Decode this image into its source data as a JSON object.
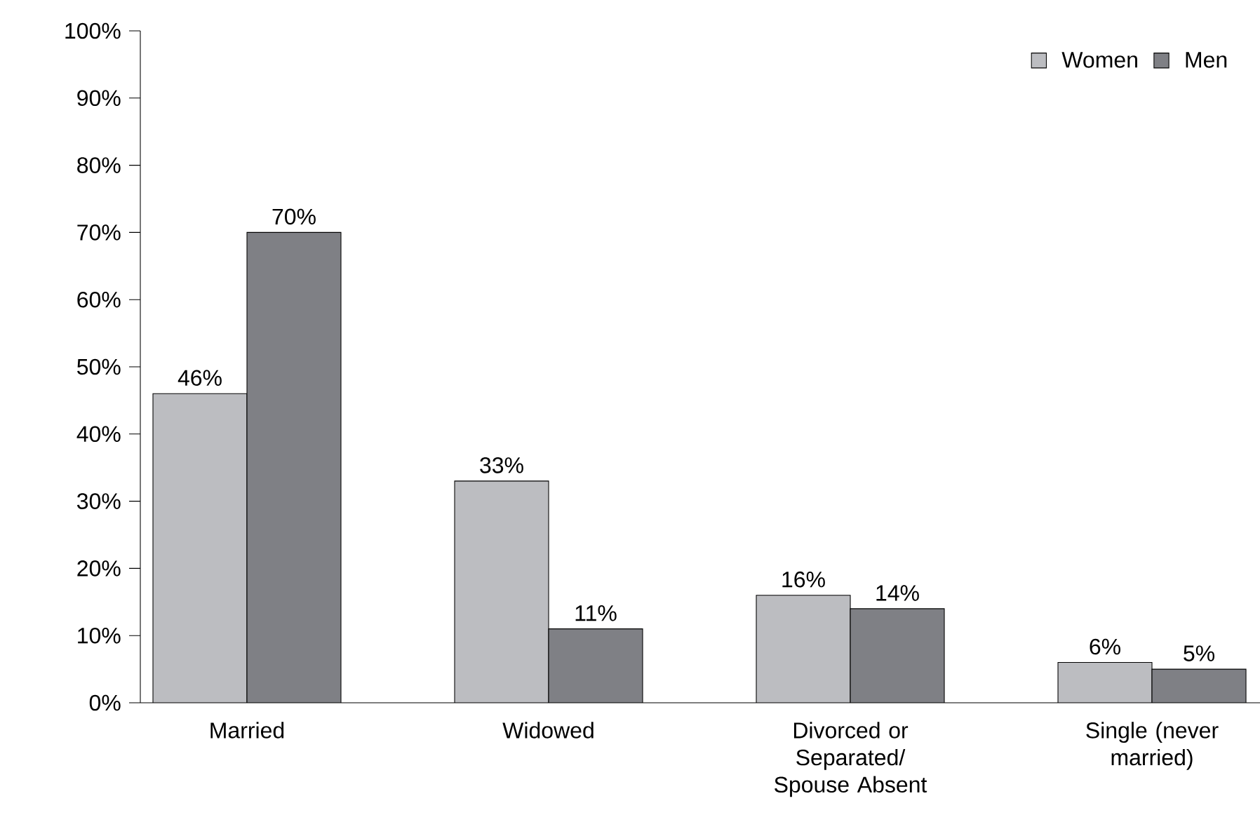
{
  "chart_data": {
    "type": "bar",
    "categories": [
      "Married",
      "Widowed",
      "Divorced or Separated/ Spouse Absent",
      "Single (never married)"
    ],
    "series": [
      {
        "name": "Women",
        "color": "#bcbdc1",
        "values": [
          46,
          33,
          16,
          6
        ],
        "value_labels": [
          "46%",
          "33%",
          "16%",
          "6%"
        ]
      },
      {
        "name": "Men",
        "color": "#7f8085",
        "values": [
          70,
          11,
          14,
          5
        ],
        "value_labels": [
          "70%",
          "11%",
          "14%",
          "5%"
        ]
      }
    ],
    "ylim": [
      0,
      100
    ],
    "yticks": [
      {
        "value": 0,
        "label": "0%"
      },
      {
        "value": 10,
        "label": "10%"
      },
      {
        "value": 20,
        "label": "20%"
      },
      {
        "value": 30,
        "label": "30%"
      },
      {
        "value": 40,
        "label": "40%"
      },
      {
        "value": 50,
        "label": "50%"
      },
      {
        "value": 60,
        "label": "60%"
      },
      {
        "value": 70,
        "label": "70%"
      },
      {
        "value": 80,
        "label": "80%"
      },
      {
        "value": 90,
        "label": "90%"
      },
      {
        "value": 100,
        "label": "100%"
      }
    ],
    "grid": false,
    "legend": "top right"
  }
}
